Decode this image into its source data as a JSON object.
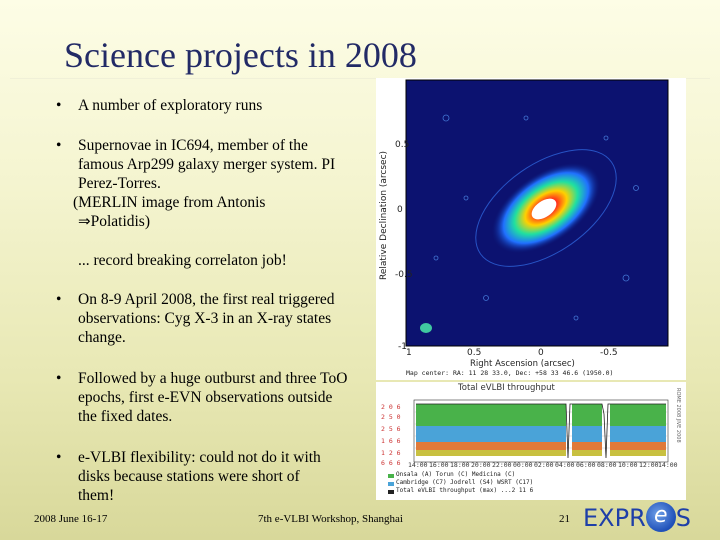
{
  "slide": {
    "title": "Science projects in 2008",
    "bullets": [
      {
        "marker": "•",
        "text": "A number of exploratory runs"
      },
      {
        "marker": "•",
        "text": "Supernovae in IC694, member of the famous Arp299 galaxy merger system. PI Perez-Torres."
      },
      {
        "marker": "•",
        "text": "On 8-9 April 2008, the first real triggered observations: Cyg X-3 in an X-ray states change."
      },
      {
        "marker": "•",
        "text": "Followed by a huge outburst and three ToO epochs, first e-EVN observations outside the fixed dates."
      },
      {
        "marker": "•",
        "text": "e-VLBI flexibility: could not do it with disks because stations were short of them!"
      }
    ],
    "merlin_line": "(MERLIN image from Antonis",
    "arrow_glyph": "⇒",
    "merlin_line2": "Polatidis)",
    "record_line": "... record breaking correlaton job!"
  },
  "figure_map": {
    "ylabel": "Relative Declination (arcsec)",
    "xlabel": "Right Ascension (arcsec)",
    "yticks": [
      "0.5",
      "0",
      "-0.5",
      "-1"
    ],
    "xticks": [
      "1",
      "0.5",
      "0",
      "-0.5"
    ],
    "map_center": "Map center: RA: 11 28 33.0, Dec: +58 33 46.6 (1950.0)"
  },
  "figure_throughput": {
    "title": "Total eVLBI throughput",
    "yticks": [
      "2 0 6",
      "2 5 0",
      "2 5 6",
      "1 6 6",
      "1 2 6",
      "6 6 6"
    ],
    "xticks": [
      "14:00",
      "16:00",
      "18:00",
      "20:00",
      "22:00",
      "00:00",
      "02:00",
      "04:00",
      "06:00",
      "08:00",
      "10:00",
      "12:00",
      "14:00"
    ],
    "legend": [
      "Onsala (A)   Torun (C)   Medicina (C)",
      "Cambridge (C7)  Jodrell (S4)  WSRT (C17)",
      "Total eVLBI throughput (max)  ...2 11 6"
    ],
    "side_note": "ROME 2008 JIVE 2008"
  },
  "footer": {
    "date": "2008 June 16-17",
    "event": "7th e-VLBI Workshop, Shanghai",
    "page": "21",
    "logo_left": "EXPR",
    "logo_e": "e",
    "logo_right": "S"
  },
  "colors": {
    "title": "#222a66",
    "logo": "#1e3fa8"
  }
}
